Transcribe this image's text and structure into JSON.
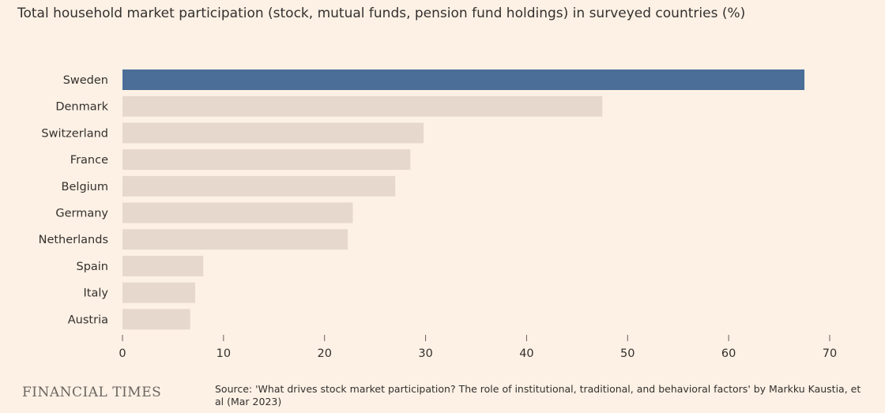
{
  "chart_data": {
    "type": "bar",
    "orientation": "horizontal",
    "title": "Total household market participation (stock, mutual funds, pension fund holdings) in surveyed countries (%)",
    "categories": [
      "Sweden",
      "Denmark",
      "Switzerland",
      "France",
      "Belgium",
      "Germany",
      "Netherlands",
      "Spain",
      "Italy",
      "Austria"
    ],
    "values": [
      67.5,
      47.5,
      29.8,
      28.5,
      27.0,
      22.8,
      22.3,
      8.0,
      7.2,
      6.7
    ],
    "highlight_category": "Sweden",
    "xlim": [
      0,
      70
    ],
    "xticks": [
      0,
      10,
      20,
      30,
      40,
      50,
      60,
      70
    ],
    "grid": false,
    "colors": {
      "highlight": "#4a6e98",
      "default": "#e6d8cc",
      "background": "#fdf1e5"
    }
  },
  "footer": {
    "logo": "FINANCIAL TIMES",
    "source": "Source: 'What drives stock market participation? The role of institutional, traditional, and behavioral factors' by Markku Kaustia, et al (Mar 2023)"
  }
}
